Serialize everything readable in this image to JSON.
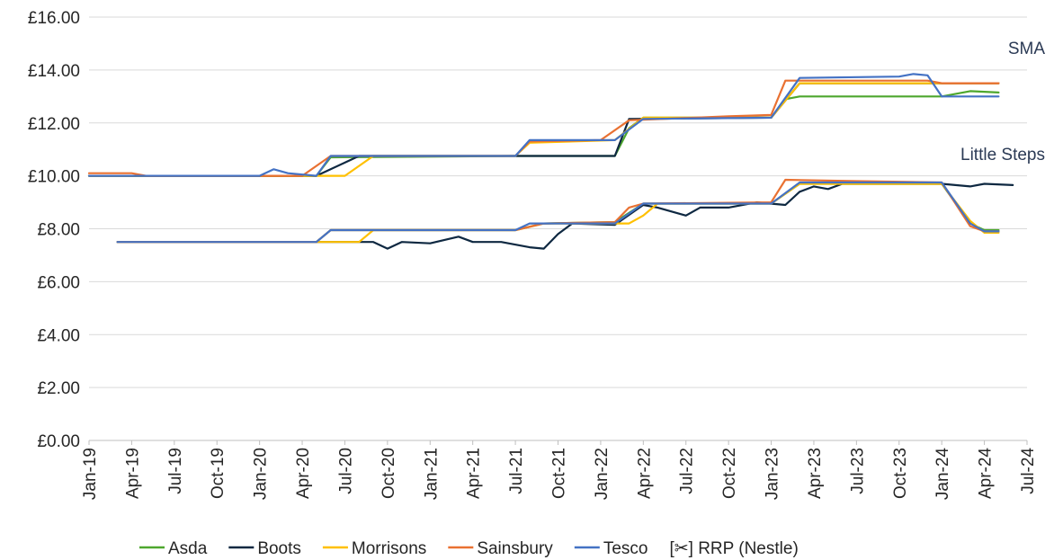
{
  "chart_data": {
    "type": "line",
    "title": "",
    "xlabel": "",
    "ylabel": "",
    "x_ticks": [
      "Jan-19",
      "Apr-19",
      "Jul-19",
      "Oct-19",
      "Jan-20",
      "Apr-20",
      "Jul-20",
      "Oct-20",
      "Jan-21",
      "Apr-21",
      "Jul-21",
      "Oct-21",
      "Jan-22",
      "Apr-22",
      "Jul-22",
      "Oct-22",
      "Jan-23",
      "Apr-23",
      "Jul-23",
      "Oct-23",
      "Jan-24",
      "Apr-24",
      "Jul-24"
    ],
    "y_ticks": [
      "£0.00",
      "£2.00",
      "£4.00",
      "£6.00",
      "£8.00",
      "£10.00",
      "£12.00",
      "£14.00",
      "£16.00"
    ],
    "ylim": [
      0,
      16
    ],
    "xlim": [
      "Jan-19",
      "Jul-24"
    ],
    "grid": "horizontal",
    "legend_position": "bottom",
    "annotations": [
      {
        "text": "SMA",
        "x": "Jun-24",
        "y": 14.6
      },
      {
        "text": "Little Steps",
        "x": "Jun-24",
        "y": 10.6
      }
    ],
    "legend": [
      {
        "name": "Asda",
        "color": "#4ea72e"
      },
      {
        "name": "Boots",
        "color": "#0e2841"
      },
      {
        "name": "Morrisons",
        "color": "#ffc000"
      },
      {
        "name": "Sainsbury",
        "color": "#e97132"
      },
      {
        "name": "Tesco",
        "color": "#4472c4"
      },
      {
        "name": "[✂] RRP (Nestle)",
        "color": "#ffffff"
      }
    ],
    "series": [
      {
        "name": "Asda",
        "group": "SMA",
        "color": "#4ea72e",
        "points": [
          [
            "Jan-19",
            10.0
          ],
          [
            "May-20",
            10.0
          ],
          [
            "Jun-20",
            10.7
          ],
          [
            "Jul-21",
            10.75
          ],
          [
            "Feb-22",
            10.75
          ],
          [
            "Mar-22",
            11.8
          ],
          [
            "Apr-22",
            12.2
          ],
          [
            "Jan-23",
            12.2
          ],
          [
            "Feb-23",
            12.9
          ],
          [
            "Mar-23",
            13.0
          ],
          [
            "Jan-24",
            13.0
          ],
          [
            "Mar-24",
            13.2
          ],
          [
            "May-24",
            13.15
          ]
        ]
      },
      {
        "name": "Boots",
        "group": "SMA",
        "color": "#0e2841",
        "points": [
          [
            "Jan-19",
            10.0
          ],
          [
            "May-20",
            10.0
          ],
          [
            "Jul-20",
            10.5
          ],
          [
            "Aug-20",
            10.75
          ],
          [
            "Jul-21",
            10.75
          ],
          [
            "Feb-22",
            10.75
          ],
          [
            "Mar-22",
            12.15
          ],
          [
            "Jan-23",
            12.2
          ],
          [
            "Mar-23",
            13.5
          ],
          [
            "Jan-24",
            13.5
          ],
          [
            "May-24",
            13.5
          ]
        ]
      },
      {
        "name": "Morrisons",
        "group": "SMA",
        "color": "#ffc000",
        "points": [
          [
            "Jan-19",
            10.0
          ],
          [
            "Jul-20",
            10.0
          ],
          [
            "Sep-20",
            10.75
          ],
          [
            "Jul-21",
            10.75
          ],
          [
            "Aug-21",
            11.25
          ],
          [
            "Feb-22",
            11.35
          ],
          [
            "Apr-22",
            12.2
          ],
          [
            "Jan-23",
            12.2
          ],
          [
            "Mar-23",
            13.5
          ],
          [
            "Jan-24",
            13.5
          ],
          [
            "May-24",
            13.5
          ]
        ]
      },
      {
        "name": "Sainsbury",
        "group": "SMA",
        "color": "#e97132",
        "points": [
          [
            "Jan-19",
            10.1
          ],
          [
            "Apr-19",
            10.1
          ],
          [
            "May-19",
            10.0
          ],
          [
            "Jan-20",
            10.0
          ],
          [
            "Apr-20",
            10.0
          ],
          [
            "Jun-20",
            10.75
          ],
          [
            "Jul-21",
            10.75
          ],
          [
            "Aug-21",
            11.3
          ],
          [
            "Jan-22",
            11.35
          ],
          [
            "Mar-22",
            12.1
          ],
          [
            "Oct-22",
            12.25
          ],
          [
            "Jan-23",
            12.3
          ],
          [
            "Feb-23",
            13.6
          ],
          [
            "Mar-23",
            13.6
          ],
          [
            "Dec-23",
            13.6
          ],
          [
            "Jan-24",
            13.5
          ],
          [
            "May-24",
            13.5
          ]
        ]
      },
      {
        "name": "Tesco",
        "group": "SMA",
        "color": "#4472c4",
        "points": [
          [
            "Jan-19",
            10.0
          ],
          [
            "Jan-20",
            10.0
          ],
          [
            "Feb-20",
            10.25
          ],
          [
            "Mar-20",
            10.1
          ],
          [
            "May-20",
            10.0
          ],
          [
            "Jun-20",
            10.75
          ],
          [
            "Jul-21",
            10.75
          ],
          [
            "Aug-21",
            11.35
          ],
          [
            "Feb-22",
            11.35
          ],
          [
            "Apr-22",
            12.15
          ],
          [
            "Jan-23",
            12.2
          ],
          [
            "Mar-23",
            13.7
          ],
          [
            "Oct-23",
            13.75
          ],
          [
            "Nov-23",
            13.85
          ],
          [
            "Dec-23",
            13.8
          ],
          [
            "Jan-24",
            13.0
          ],
          [
            "May-24",
            13.0
          ]
        ]
      },
      {
        "name": "Asda",
        "group": "Little Steps",
        "color": "#4ea72e",
        "points": [
          [
            "Mar-19",
            7.5
          ],
          [
            "May-20",
            7.5
          ],
          [
            "Jun-20",
            7.95
          ],
          [
            "Jul-21",
            7.95
          ],
          [
            "Sep-21",
            8.2
          ],
          [
            "Feb-22",
            8.25
          ],
          [
            "Apr-22",
            8.95
          ],
          [
            "Jan-23",
            8.95
          ],
          [
            "Mar-23",
            9.7
          ],
          [
            "Jan-24",
            9.7
          ],
          [
            "Mar-24",
            8.2
          ],
          [
            "Apr-24",
            7.95
          ],
          [
            "May-24",
            7.95
          ]
        ]
      },
      {
        "name": "Boots",
        "group": "Little Steps",
        "color": "#0e2841",
        "points": [
          [
            "Mar-19",
            7.5
          ],
          [
            "Jul-20",
            7.5
          ],
          [
            "Aug-20",
            7.5
          ],
          [
            "Sep-20",
            7.5
          ],
          [
            "Oct-20",
            7.25
          ],
          [
            "Nov-20",
            7.5
          ],
          [
            "Jan-21",
            7.45
          ],
          [
            "Mar-21",
            7.7
          ],
          [
            "Apr-21",
            7.5
          ],
          [
            "Jun-21",
            7.5
          ],
          [
            "Aug-21",
            7.3
          ],
          [
            "Sep-21",
            7.25
          ],
          [
            "Oct-21",
            7.8
          ],
          [
            "Nov-21",
            8.2
          ],
          [
            "Feb-22",
            8.15
          ],
          [
            "Apr-22",
            8.9
          ],
          [
            "May-22",
            8.8
          ],
          [
            "Jul-22",
            8.5
          ],
          [
            "Aug-22",
            8.8
          ],
          [
            "Oct-22",
            8.8
          ],
          [
            "Dec-22",
            9.0
          ],
          [
            "Feb-23",
            8.9
          ],
          [
            "Mar-23",
            9.4
          ],
          [
            "Apr-23",
            9.6
          ],
          [
            "May-23",
            9.5
          ],
          [
            "Jun-23",
            9.7
          ],
          [
            "Jan-24",
            9.7
          ],
          [
            "Mar-24",
            9.6
          ],
          [
            "Apr-24",
            9.7
          ],
          [
            "Jun-24",
            9.65
          ]
        ]
      },
      {
        "name": "Morrisons",
        "group": "Little Steps",
        "color": "#ffc000",
        "points": [
          [
            "Mar-19",
            7.5
          ],
          [
            "Jul-20",
            7.5
          ],
          [
            "Aug-20",
            7.5
          ],
          [
            "Sep-20",
            7.95
          ],
          [
            "Jul-21",
            7.95
          ],
          [
            "Sep-21",
            8.2
          ],
          [
            "Feb-22",
            8.2
          ],
          [
            "Mar-22",
            8.2
          ],
          [
            "Apr-22",
            8.5
          ],
          [
            "May-22",
            8.95
          ],
          [
            "Jan-23",
            8.95
          ],
          [
            "Mar-23",
            9.7
          ],
          [
            "Jan-24",
            9.7
          ],
          [
            "Mar-24",
            8.3
          ],
          [
            "Apr-24",
            7.85
          ],
          [
            "May-24",
            7.85
          ]
        ]
      },
      {
        "name": "Sainsbury",
        "group": "Little Steps",
        "color": "#e97132",
        "points": [
          [
            "Mar-19",
            7.5
          ],
          [
            "May-20",
            7.5
          ],
          [
            "Jun-20",
            7.95
          ],
          [
            "Jul-21",
            7.95
          ],
          [
            "Sep-21",
            8.2
          ],
          [
            "Feb-22",
            8.25
          ],
          [
            "Mar-22",
            8.8
          ],
          [
            "Apr-22",
            8.95
          ],
          [
            "Jan-23",
            9.0
          ],
          [
            "Feb-23",
            9.85
          ],
          [
            "Jul-23",
            9.8
          ],
          [
            "Jan-24",
            9.75
          ],
          [
            "Mar-24",
            8.1
          ],
          [
            "Apr-24",
            7.9
          ],
          [
            "May-24",
            7.9
          ]
        ]
      },
      {
        "name": "Tesco",
        "group": "Little Steps",
        "color": "#4472c4",
        "points": [
          [
            "Mar-19",
            7.5
          ],
          [
            "May-20",
            7.5
          ],
          [
            "Jun-20",
            7.95
          ],
          [
            "Jul-21",
            7.95
          ],
          [
            "Aug-21",
            8.2
          ],
          [
            "Feb-22",
            8.2
          ],
          [
            "Apr-22",
            8.95
          ],
          [
            "Jan-23",
            8.95
          ],
          [
            "Mar-23",
            9.75
          ],
          [
            "Jan-24",
            9.75
          ],
          [
            "Mar-24",
            8.2
          ],
          [
            "Apr-24",
            7.9
          ],
          [
            "May-24",
            7.9
          ]
        ]
      }
    ]
  }
}
